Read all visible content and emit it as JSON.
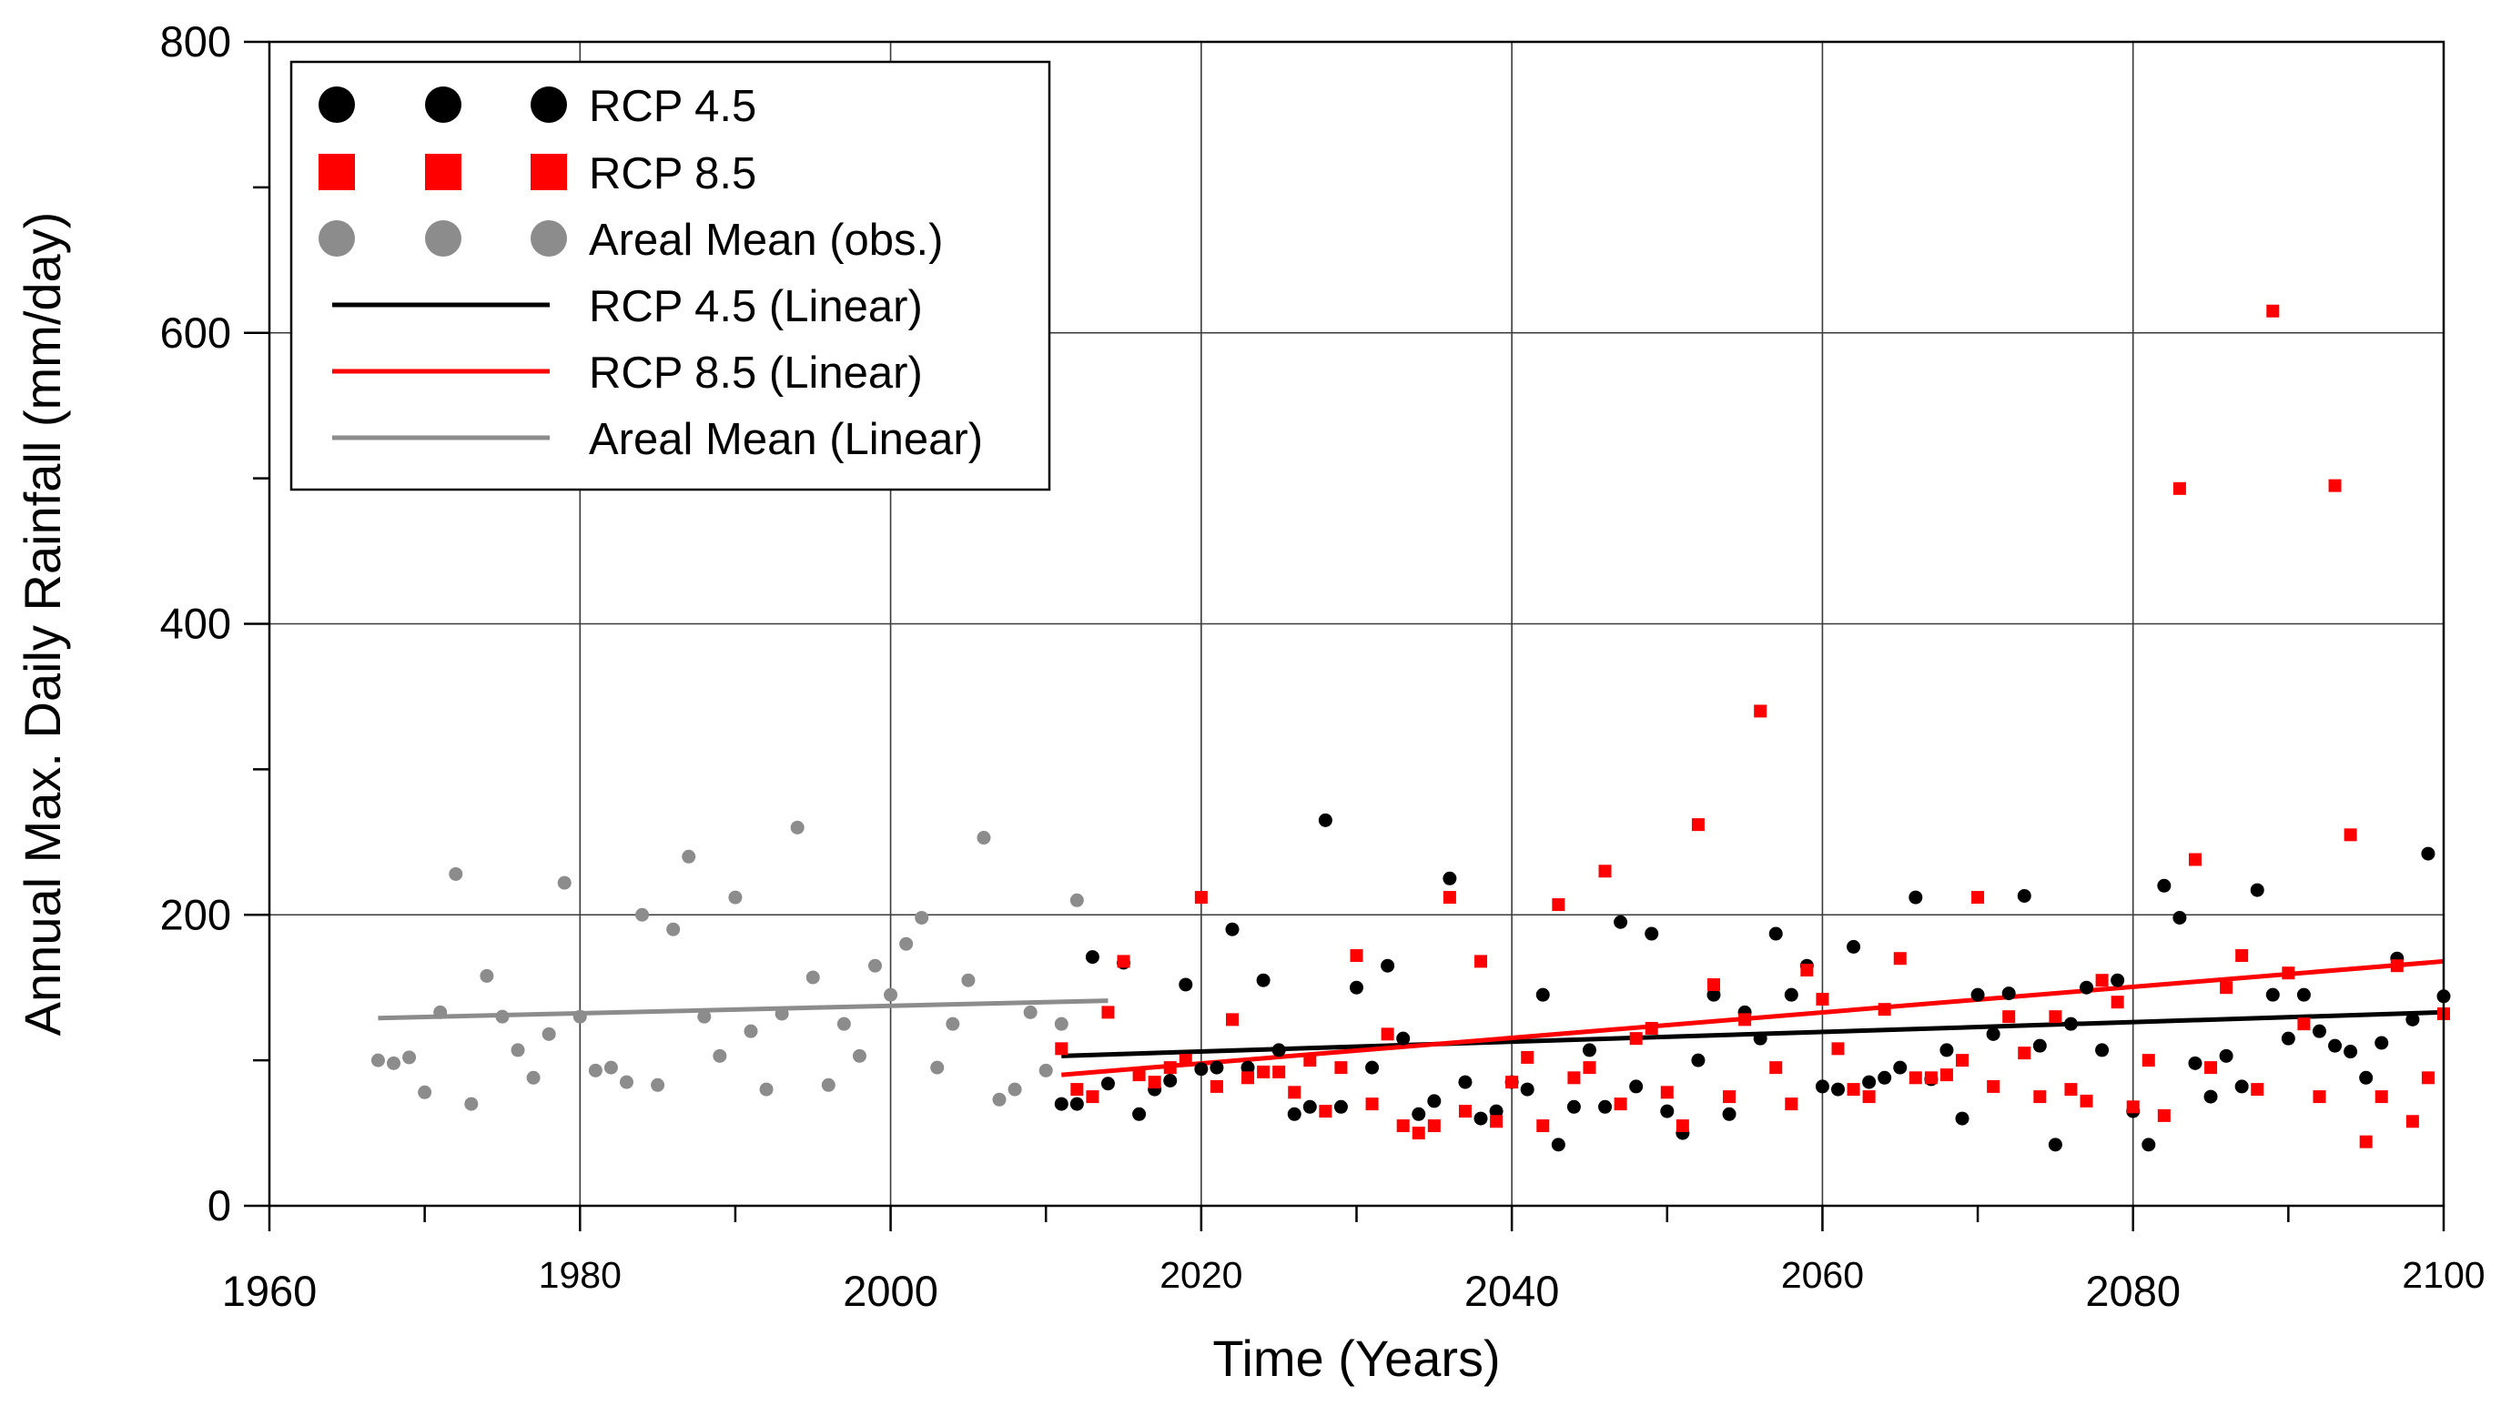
{
  "chart_data": {
    "type": "scatter",
    "title": "",
    "xlabel": "Time (Years)",
    "ylabel": "Annual Max. Daily Rainfall (mm/day)",
    "xlim": [
      1960,
      2100
    ],
    "ylim": [
      0,
      800
    ],
    "x_ticks": [
      1960,
      1980,
      2000,
      2020,
      2040,
      2060,
      2080,
      2100
    ],
    "y_ticks": [
      0,
      200,
      400,
      600,
      800
    ],
    "grid": true,
    "legend_position": "top-left",
    "series": [
      {
        "name": "RCP 4.5",
        "kind": "points",
        "marker": "circle",
        "color": "#000000",
        "points": [
          [
            2011,
            70
          ],
          [
            2012,
            70
          ],
          [
            2013,
            171
          ],
          [
            2014,
            84
          ],
          [
            2015,
            167
          ],
          [
            2016,
            63
          ],
          [
            2017,
            80
          ],
          [
            2018,
            86
          ],
          [
            2019,
            152
          ],
          [
            2020,
            94
          ],
          [
            2021,
            95
          ],
          [
            2022,
            190
          ],
          [
            2023,
            95
          ],
          [
            2024,
            155
          ],
          [
            2025,
            107
          ],
          [
            2026,
            63
          ],
          [
            2027,
            68
          ],
          [
            2028,
            265
          ],
          [
            2029,
            68
          ],
          [
            2030,
            150
          ],
          [
            2031,
            95
          ],
          [
            2032,
            165
          ],
          [
            2033,
            115
          ],
          [
            2034,
            63
          ],
          [
            2035,
            72
          ],
          [
            2036,
            225
          ],
          [
            2037,
            85
          ],
          [
            2038,
            60
          ],
          [
            2039,
            65
          ],
          [
            2040,
            85
          ],
          [
            2041,
            80
          ],
          [
            2042,
            145
          ],
          [
            2043,
            42
          ],
          [
            2044,
            68
          ],
          [
            2045,
            107
          ],
          [
            2046,
            68
          ],
          [
            2047,
            195
          ],
          [
            2048,
            82
          ],
          [
            2049,
            187
          ],
          [
            2050,
            65
          ],
          [
            2051,
            50
          ],
          [
            2052,
            100
          ],
          [
            2053,
            145
          ],
          [
            2054,
            63
          ],
          [
            2055,
            133
          ],
          [
            2056,
            115
          ],
          [
            2057,
            187
          ],
          [
            2058,
            145
          ],
          [
            2059,
            165
          ],
          [
            2060,
            82
          ],
          [
            2061,
            80
          ],
          [
            2062,
            178
          ],
          [
            2063,
            85
          ],
          [
            2064,
            88
          ],
          [
            2065,
            95
          ],
          [
            2066,
            212
          ],
          [
            2067,
            87
          ],
          [
            2068,
            107
          ],
          [
            2069,
            60
          ],
          [
            2070,
            145
          ],
          [
            2071,
            118
          ],
          [
            2072,
            146
          ],
          [
            2073,
            213
          ],
          [
            2074,
            110
          ],
          [
            2075,
            42
          ],
          [
            2076,
            125
          ],
          [
            2077,
            150
          ],
          [
            2078,
            107
          ],
          [
            2079,
            155
          ],
          [
            2080,
            65
          ],
          [
            2081,
            42
          ],
          [
            2082,
            220
          ],
          [
            2083,
            198
          ],
          [
            2084,
            98
          ],
          [
            2085,
            75
          ],
          [
            2086,
            103
          ],
          [
            2087,
            82
          ],
          [
            2088,
            217
          ],
          [
            2089,
            145
          ],
          [
            2090,
            115
          ],
          [
            2091,
            145
          ],
          [
            2092,
            120
          ],
          [
            2093,
            110
          ],
          [
            2094,
            106
          ],
          [
            2095,
            88
          ],
          [
            2096,
            112
          ],
          [
            2097,
            170
          ],
          [
            2098,
            128
          ],
          [
            2099,
            242
          ],
          [
            2100,
            144
          ]
        ]
      },
      {
        "name": "RCP 8.5",
        "kind": "points",
        "marker": "square",
        "color": "#ff0000",
        "points": [
          [
            2011,
            108
          ],
          [
            2012,
            80
          ],
          [
            2013,
            75
          ],
          [
            2014,
            133
          ],
          [
            2015,
            168
          ],
          [
            2016,
            90
          ],
          [
            2017,
            85
          ],
          [
            2018,
            95
          ],
          [
            2019,
            100
          ],
          [
            2020,
            212
          ],
          [
            2021,
            82
          ],
          [
            2022,
            128
          ],
          [
            2023,
            88
          ],
          [
            2024,
            92
          ],
          [
            2025,
            92
          ],
          [
            2026,
            78
          ],
          [
            2027,
            100
          ],
          [
            2028,
            65
          ],
          [
            2029,
            95
          ],
          [
            2030,
            172
          ],
          [
            2031,
            70
          ],
          [
            2032,
            118
          ],
          [
            2033,
            55
          ],
          [
            2034,
            50
          ],
          [
            2035,
            55
          ],
          [
            2036,
            212
          ],
          [
            2037,
            65
          ],
          [
            2038,
            168
          ],
          [
            2039,
            58
          ],
          [
            2040,
            85
          ],
          [
            2041,
            102
          ],
          [
            2042,
            55
          ],
          [
            2043,
            207
          ],
          [
            2044,
            88
          ],
          [
            2045,
            95
          ],
          [
            2046,
            230
          ],
          [
            2047,
            70
          ],
          [
            2048,
            115
          ],
          [
            2049,
            122
          ],
          [
            2050,
            78
          ],
          [
            2051,
            55
          ],
          [
            2052,
            262
          ],
          [
            2053,
            152
          ],
          [
            2054,
            75
          ],
          [
            2055,
            128
          ],
          [
            2056,
            340
          ],
          [
            2057,
            95
          ],
          [
            2058,
            70
          ],
          [
            2059,
            162
          ],
          [
            2060,
            142
          ],
          [
            2061,
            108
          ],
          [
            2062,
            80
          ],
          [
            2063,
            75
          ],
          [
            2064,
            135
          ],
          [
            2065,
            170
          ],
          [
            2066,
            88
          ],
          [
            2067,
            88
          ],
          [
            2068,
            90
          ],
          [
            2069,
            100
          ],
          [
            2070,
            212
          ],
          [
            2071,
            82
          ],
          [
            2072,
            130
          ],
          [
            2073,
            105
          ],
          [
            2074,
            75
          ],
          [
            2075,
            130
          ],
          [
            2076,
            80
          ],
          [
            2077,
            72
          ],
          [
            2078,
            155
          ],
          [
            2079,
            140
          ],
          [
            2080,
            68
          ],
          [
            2081,
            100
          ],
          [
            2082,
            62
          ],
          [
            2083,
            493
          ],
          [
            2084,
            238
          ],
          [
            2085,
            95
          ],
          [
            2086,
            150
          ],
          [
            2087,
            172
          ],
          [
            2088,
            80
          ],
          [
            2089,
            615
          ],
          [
            2090,
            160
          ],
          [
            2091,
            125
          ],
          [
            2092,
            75
          ],
          [
            2093,
            495
          ],
          [
            2094,
            255
          ],
          [
            2095,
            44
          ],
          [
            2096,
            75
          ],
          [
            2097,
            165
          ],
          [
            2098,
            58
          ],
          [
            2099,
            88
          ],
          [
            2100,
            132
          ]
        ]
      },
      {
        "name": "Areal Mean (obs.)",
        "kind": "points",
        "marker": "circle",
        "color": "#8c8c8c",
        "points": [
          [
            1967,
            100
          ],
          [
            1968,
            98
          ],
          [
            1969,
            102
          ],
          [
            1970,
            78
          ],
          [
            1971,
            133
          ],
          [
            1972,
            228
          ],
          [
            1973,
            70
          ],
          [
            1974,
            158
          ],
          [
            1975,
            130
          ],
          [
            1976,
            107
          ],
          [
            1977,
            88
          ],
          [
            1978,
            118
          ],
          [
            1979,
            222
          ],
          [
            1980,
            130
          ],
          [
            1981,
            93
          ],
          [
            1982,
            95
          ],
          [
            1983,
            85
          ],
          [
            1984,
            200
          ],
          [
            1985,
            83
          ],
          [
            1986,
            190
          ],
          [
            1987,
            240
          ],
          [
            1988,
            130
          ],
          [
            1989,
            103
          ],
          [
            1990,
            212
          ],
          [
            1991,
            120
          ],
          [
            1992,
            80
          ],
          [
            1993,
            132
          ],
          [
            1994,
            260
          ],
          [
            1995,
            157
          ],
          [
            1996,
            83
          ],
          [
            1997,
            125
          ],
          [
            1998,
            103
          ],
          [
            1999,
            165
          ],
          [
            2000,
            145
          ],
          [
            2001,
            180
          ],
          [
            2002,
            198
          ],
          [
            2003,
            95
          ],
          [
            2004,
            125
          ],
          [
            2005,
            155
          ],
          [
            2006,
            253
          ],
          [
            2007,
            73
          ],
          [
            2008,
            80
          ],
          [
            2009,
            133
          ],
          [
            2010,
            93
          ],
          [
            2011,
            125
          ],
          [
            2012,
            210
          ]
        ]
      },
      {
        "name": "RCP 4.5 (Linear)",
        "kind": "line",
        "color": "#000000",
        "points": [
          [
            2011,
            103
          ],
          [
            2100,
            133
          ]
        ]
      },
      {
        "name": "RCP 8.5 (Linear)",
        "kind": "line",
        "color": "#ff0000",
        "points": [
          [
            2011,
            90
          ],
          [
            2100,
            168
          ]
        ]
      },
      {
        "name": "Areal Mean (Linear)",
        "kind": "line",
        "color": "#8c8c8c",
        "points": [
          [
            1967,
            129
          ],
          [
            2014,
            141
          ]
        ]
      }
    ]
  }
}
